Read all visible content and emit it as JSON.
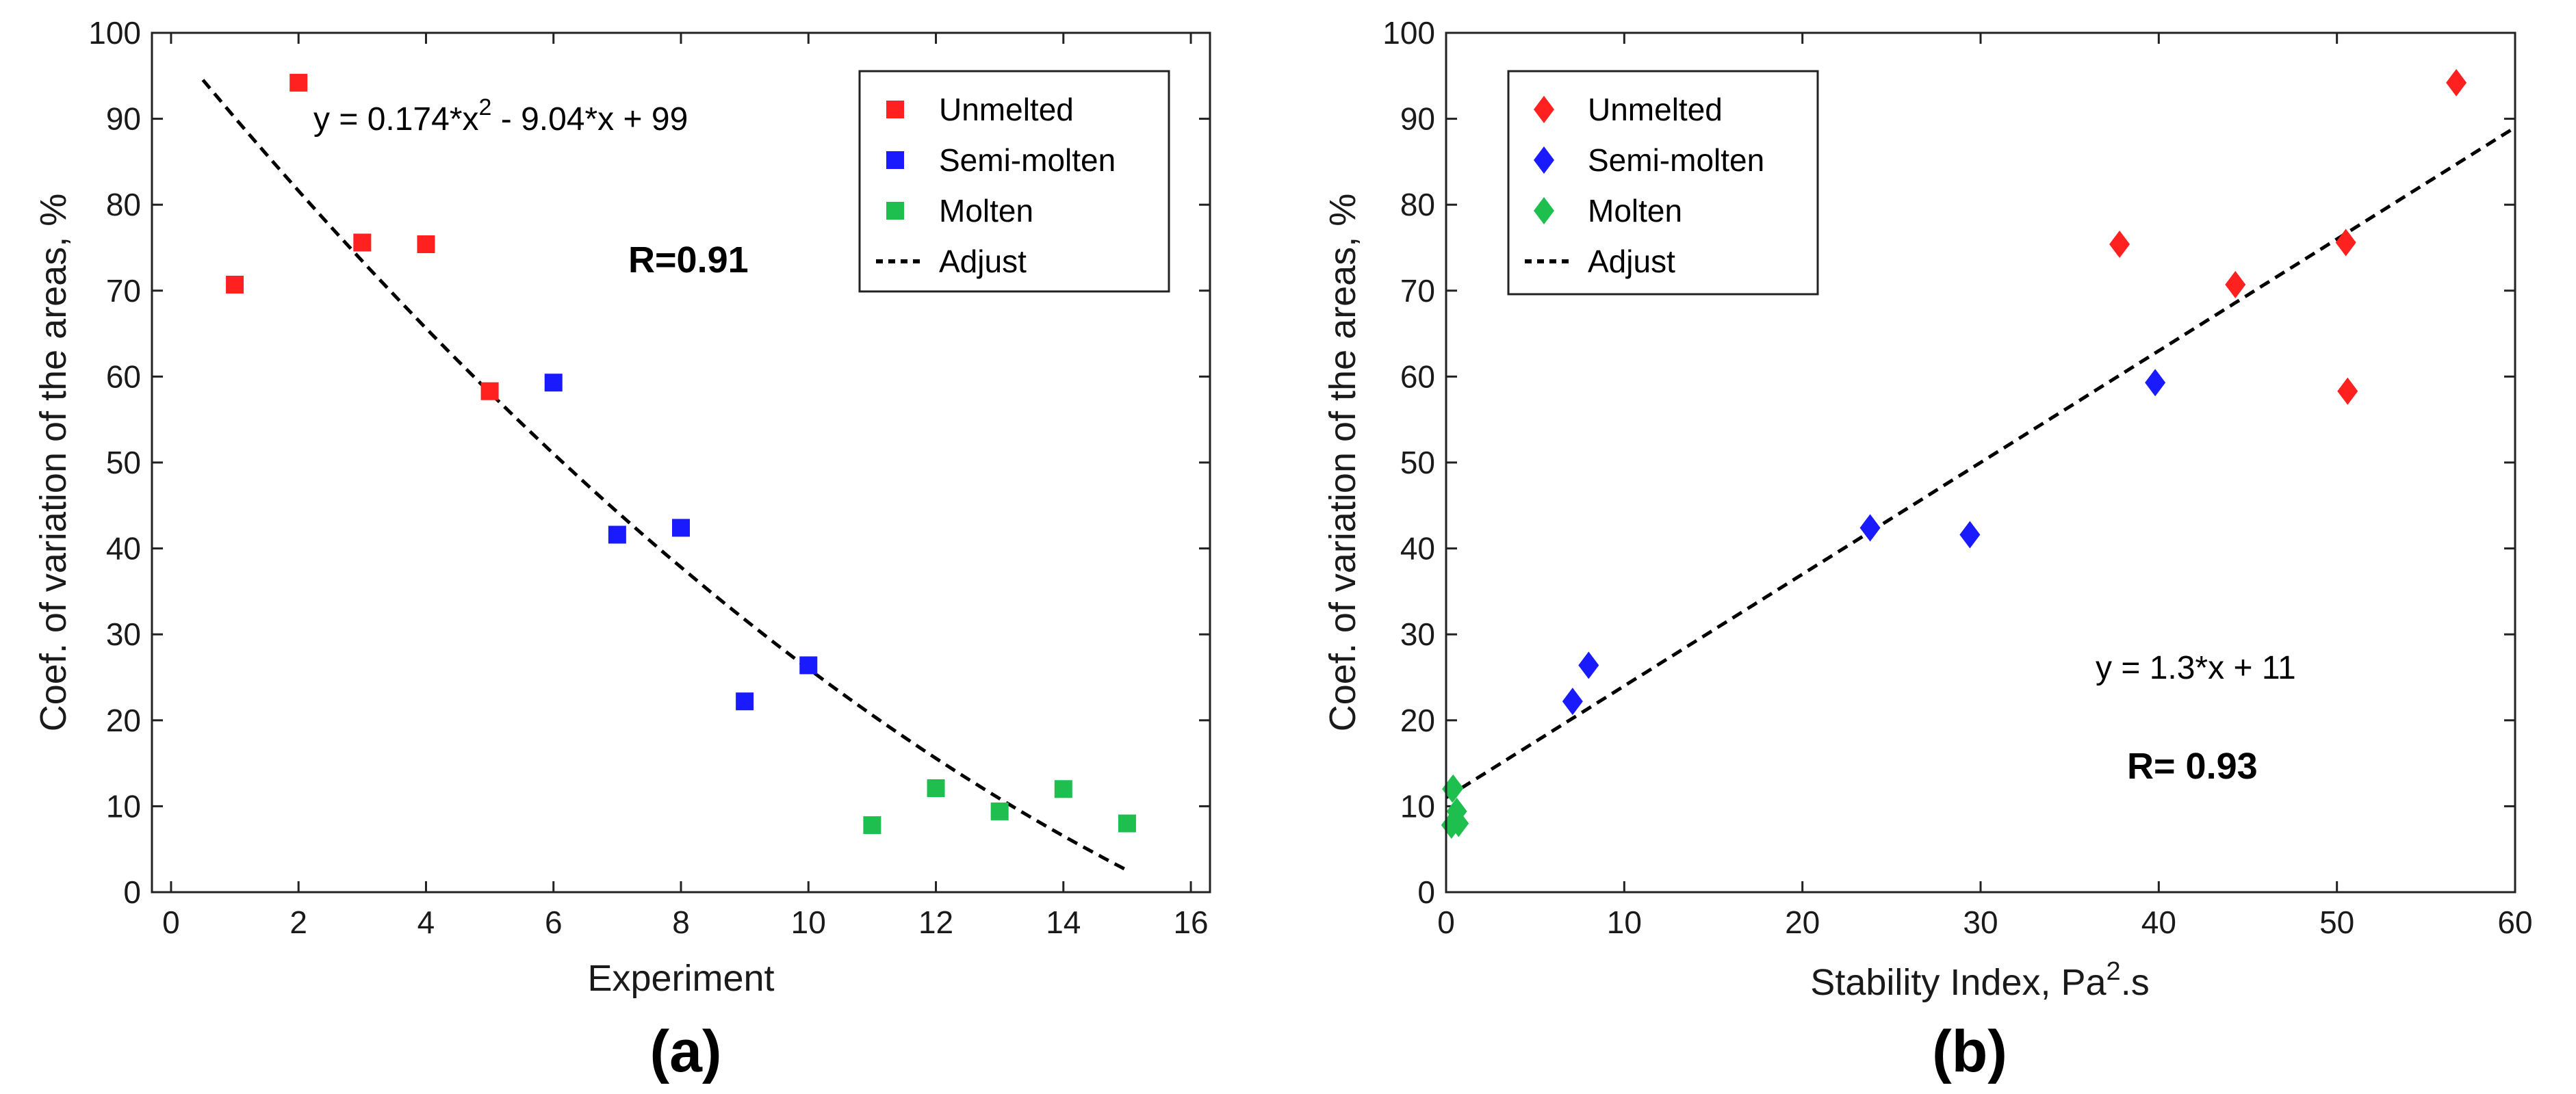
{
  "chart_data": [
    {
      "type": "scatter",
      "panel_label": "(a)",
      "xlabel": "Experiment",
      "ylabel": "Coef. of variation of the areas, %",
      "xlim": [
        -0.3,
        16.3
      ],
      "ylim": [
        0,
        100
      ],
      "xticks": [
        "0",
        "2",
        "4",
        "6",
        "8",
        "10",
        "12",
        "14",
        "16"
      ],
      "yticks": [
        "0",
        "10",
        "20",
        "30",
        "40",
        "50",
        "60",
        "70",
        "80",
        "90",
        "100"
      ],
      "grid": false,
      "legend_position": "top-right",
      "equation": {
        "prefix": "y = 0.174*x",
        "sup": "2",
        "suffix": " - 9.04*x + 99"
      },
      "r_text": "R=0.91",
      "series": [
        {
          "name": "Unmelted",
          "color": "#ff2020",
          "marker": "square",
          "x": [
            1,
            2,
            3,
            4,
            5
          ],
          "y": [
            70.7,
            94.2,
            75.6,
            75.4,
            58.3
          ]
        },
        {
          "name": "Semi-molten",
          "color": "#1a1aff",
          "marker": "square",
          "x": [
            6,
            7,
            8,
            9,
            10
          ],
          "y": [
            59.3,
            41.6,
            42.4,
            22.2,
            26.4
          ]
        },
        {
          "name": "Molten",
          "color": "#1fbf4f",
          "marker": "square",
          "x": [
            11,
            12,
            13,
            14,
            15
          ],
          "y": [
            7.8,
            12.1,
            9.4,
            12.0,
            8.0
          ]
        }
      ],
      "fit": {
        "name": "Adjust",
        "kind": "quadratic",
        "coeffs": [
          0.174,
          -9.04,
          99
        ],
        "x_range": [
          0.5,
          15
        ]
      }
    },
    {
      "type": "scatter",
      "panel_label": "(b)",
      "xlabel_prefix": "Stability Index, Pa",
      "xlabel_sup": "2",
      "xlabel_suffix": ".s",
      "ylabel": "Coef. of variation of the areas, %",
      "xlim": [
        0,
        60
      ],
      "ylim": [
        0,
        100
      ],
      "xticks": [
        "0",
        "10",
        "20",
        "30",
        "40",
        "50",
        "60"
      ],
      "yticks": [
        "0",
        "10",
        "20",
        "30",
        "40",
        "50",
        "60",
        "70",
        "80",
        "90",
        "100"
      ],
      "grid": false,
      "legend_position": "top-left",
      "equation": {
        "text": "y = 1.3*x + 11"
      },
      "r_text": "R= 0.93",
      "series": [
        {
          "name": "Unmelted",
          "color": "#ff2020",
          "marker": "diamond",
          "x": [
            37.8,
            44.3,
            50.5,
            50.6,
            56.7
          ],
          "y": [
            75.4,
            70.7,
            75.6,
            58.3,
            94.2
          ]
        },
        {
          "name": "Semi-molten",
          "color": "#1a1aff",
          "marker": "diamond",
          "x": [
            7.1,
            8.0,
            23.8,
            29.4,
            39.8
          ],
          "y": [
            22.2,
            26.4,
            42.4,
            41.6,
            59.3
          ]
        },
        {
          "name": "Molten",
          "color": "#1fbf4f",
          "marker": "diamond",
          "x": [
            0.3,
            0.4,
            0.6,
            0.7,
            0.35
          ],
          "y": [
            7.8,
            12.1,
            9.4,
            8.0,
            12.0
          ]
        }
      ],
      "fit": {
        "name": "Adjust",
        "kind": "linear",
        "coeffs": [
          1.3,
          11
        ],
        "x_range": [
          0,
          60
        ]
      }
    }
  ]
}
